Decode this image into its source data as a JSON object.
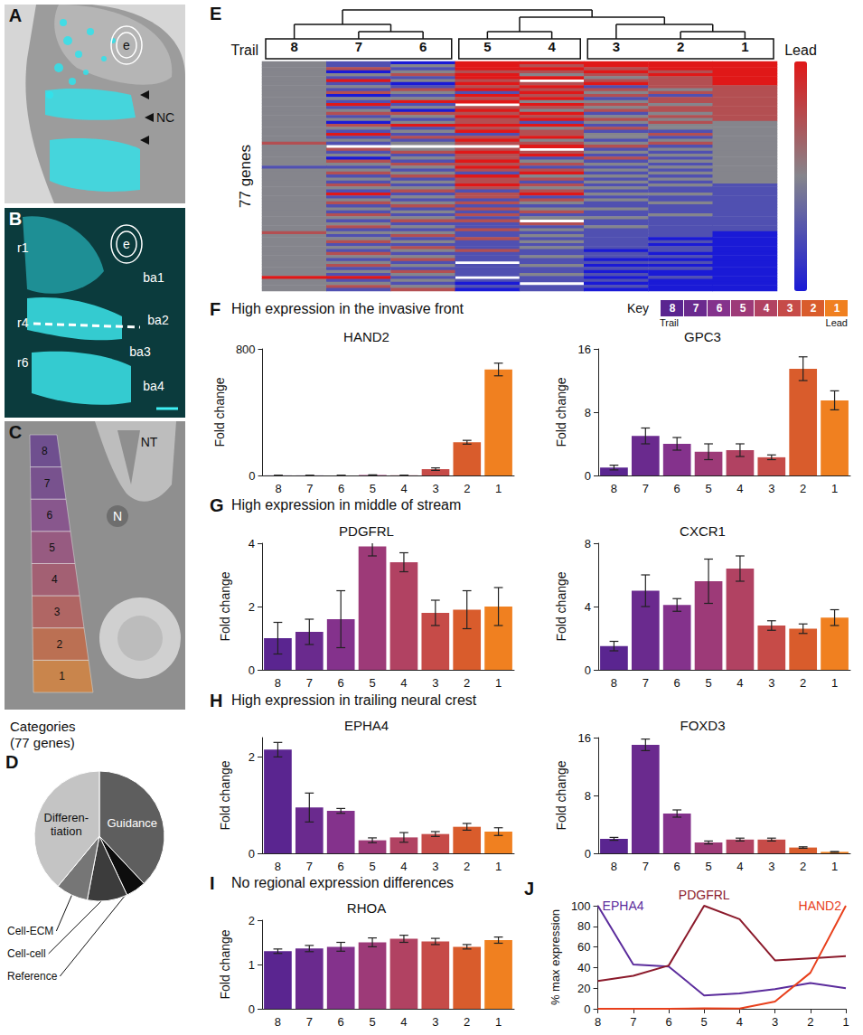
{
  "figure": {
    "images": [
      {
        "panel": "A",
        "labels": [
          "e",
          "NC"
        ]
      },
      {
        "panel": "B",
        "labels": [
          "r1",
          "r4",
          "r6",
          "ba1",
          "ba2",
          "ba3",
          "ba4",
          "e"
        ]
      },
      {
        "panel": "C",
        "labels": [
          "NT",
          "N"
        ],
        "segments": [
          "8",
          "7",
          "6",
          "5",
          "4",
          "3",
          "2",
          "1"
        ]
      }
    ],
    "sections": [
      {
        "panel": "F",
        "title": "High expression in the invasive front"
      },
      {
        "panel": "G",
        "title": "High expression in middle of stream"
      },
      {
        "panel": "H",
        "title": "High expression in trailing neural crest"
      },
      {
        "panel": "I",
        "title": "No regional expression differences"
      }
    ],
    "key": {
      "title": "Key",
      "labels": [
        "8",
        "7",
        "6",
        "5",
        "4",
        "3",
        "2",
        "1"
      ],
      "colors": [
        "#5a2590",
        "#6a2a8e",
        "#84328c",
        "#9d3a78",
        "#b14262",
        "#c64b48",
        "#d95c2c",
        "#f08020"
      ],
      "left": "Trail",
      "right": "Lead"
    }
  },
  "chart_data": [
    {
      "type": "heatmap",
      "panel": "E",
      "ylabel": "77 genes",
      "x_left_label": "Trail",
      "x_right_label": "Lead",
      "categories": [
        "8",
        "7",
        "6",
        "5",
        "4",
        "3",
        "2",
        "1"
      ],
      "dendrogram": [
        [
          "8",
          [
            "7",
            "6"
          ]
        ],
        [
          [
            "5",
            "4"
          ],
          [
            "3",
            [
              "2",
              "1"
            ]
          ]
        ]
      ],
      "clusters": [
        [
          "8",
          "7",
          "6"
        ],
        [
          "5",
          "4"
        ],
        [
          "3",
          "2",
          "1"
        ]
      ],
      "color": [
        "#1a1ad6",
        "#85858c",
        "#e01818"
      ],
      "color_range": [
        -2,
        2
      ],
      "tick_labels": "x",
      "grid": false,
      "cells": [
        [
          0,
          -1,
          -2,
          2,
          2,
          2,
          2,
          2
        ],
        [
          0,
          -1,
          0,
          2,
          1,
          2,
          2,
          2
        ],
        [
          0,
          1,
          -1,
          2,
          2,
          1,
          2,
          2
        ],
        [
          0,
          -2,
          0,
          1,
          1,
          2,
          1,
          2
        ],
        [
          0,
          0,
          1,
          2,
          0,
          1,
          2,
          2
        ],
        [
          0,
          -1,
          -1,
          2,
          2,
          0,
          1,
          2
        ],
        [
          0,
          2,
          0,
          1,
          null,
          1,
          1,
          2
        ],
        [
          0,
          -1,
          -2,
          2,
          1,
          2,
          1,
          2
        ],
        [
          0,
          0,
          -1,
          1,
          2,
          -1,
          1,
          1
        ],
        [
          0,
          -1,
          1,
          2,
          1,
          1,
          0,
          1
        ],
        [
          0,
          1,
          0,
          -1,
          2,
          0,
          1,
          1
        ],
        [
          0,
          -2,
          -1,
          2,
          1,
          1,
          -1,
          1
        ],
        [
          0,
          0,
          0,
          1,
          2,
          -1,
          1,
          1
        ],
        [
          0,
          -1,
          2,
          2,
          0,
          0,
          1,
          1
        ],
        [
          0,
          2,
          -1,
          null,
          2,
          1,
          0,
          1
        ],
        [
          0,
          -1,
          0,
          1,
          1,
          0,
          1,
          1
        ],
        [
          0,
          0,
          -2,
          2,
          0,
          1,
          1,
          1
        ],
        [
          0,
          1,
          1,
          1,
          2,
          -1,
          0,
          1
        ],
        [
          0,
          -1,
          0,
          2,
          1,
          0,
          1,
          1
        ],
        [
          0,
          0,
          -1,
          1,
          2,
          1,
          0,
          1
        ],
        [
          0,
          -2,
          0,
          1,
          -1,
          0,
          1,
          0
        ],
        [
          0,
          1,
          2,
          2,
          2,
          -1,
          0,
          0
        ],
        [
          0,
          0,
          -1,
          1,
          0,
          1,
          0,
          0
        ],
        [
          0,
          -1,
          0,
          2,
          1,
          -1,
          -1,
          0
        ],
        [
          0,
          2,
          -1,
          -1,
          1,
          0,
          1,
          0
        ],
        [
          0,
          -1,
          1,
          1,
          2,
          0,
          -1,
          0
        ],
        [
          0,
          0,
          -1,
          2,
          0,
          -1,
          0,
          0
        ],
        [
          1,
          -1,
          0,
          1,
          1,
          0,
          1,
          0
        ],
        [
          0,
          null,
          null,
          null,
          2,
          1,
          -1,
          0
        ],
        [
          0,
          1,
          0,
          1,
          null,
          -1,
          0,
          0
        ],
        [
          0,
          -1,
          1,
          2,
          1,
          0,
          -1,
          0
        ],
        [
          0,
          0,
          -1,
          1,
          2,
          -1,
          0,
          0
        ],
        [
          0,
          -2,
          0,
          1,
          -1,
          1,
          -1,
          0
        ],
        [
          0,
          1,
          -1,
          2,
          0,
          -1,
          0,
          0
        ],
        [
          0,
          0,
          1,
          1,
          1,
          0,
          -1,
          0
        ],
        [
          -1,
          -1,
          0,
          2,
          -1,
          -1,
          0,
          0
        ],
        [
          0,
          0,
          -1,
          1,
          1,
          0,
          -1,
          0
        ],
        [
          0,
          1,
          0,
          -1,
          2,
          -1,
          0,
          0
        ],
        [
          0,
          -1,
          1,
          2,
          0,
          0,
          -1,
          0
        ],
        [
          0,
          0,
          -1,
          1,
          1,
          -1,
          0,
          0
        ],
        [
          0,
          -1,
          0,
          1,
          -1,
          0,
          -1,
          0
        ],
        [
          0,
          1,
          -1,
          2,
          1,
          -1,
          0,
          -1
        ],
        [
          0,
          0,
          0,
          1,
          0,
          0,
          -1,
          -1
        ],
        [
          0,
          -1,
          1,
          -1,
          1,
          -1,
          -1,
          -1
        ],
        [
          0,
          2,
          -1,
          1,
          2,
          0,
          0,
          -1
        ],
        [
          0,
          -1,
          0,
          1,
          -1,
          -1,
          -1,
          -1
        ],
        [
          0,
          0,
          -1,
          -1,
          1,
          0,
          -1,
          -1
        ],
        [
          0,
          1,
          0,
          1,
          0,
          -1,
          0,
          -1
        ],
        [
          0,
          -1,
          1,
          -1,
          -1,
          -1,
          -1,
          -1
        ],
        [
          0,
          0,
          -1,
          1,
          0,
          0,
          -1,
          -1
        ],
        [
          0,
          -1,
          0,
          -1,
          1,
          -1,
          -1,
          -1
        ],
        [
          0,
          1,
          -1,
          1,
          -1,
          -1,
          0,
          -1
        ],
        [
          0,
          0,
          0,
          -1,
          0,
          0,
          -1,
          -1
        ],
        [
          0,
          -1,
          1,
          1,
          null,
          -1,
          -1,
          -1
        ],
        [
          0,
          0,
          -1,
          -1,
          1,
          -1,
          -1,
          -1
        ],
        [
          0,
          1,
          0,
          -1,
          -1,
          0,
          -1,
          -1
        ],
        [
          0,
          -1,
          -1,
          1,
          0,
          -1,
          -1,
          -1
        ],
        [
          1,
          0,
          0,
          -1,
          -1,
          -1,
          -1,
          -2
        ],
        [
          0,
          -1,
          1,
          -1,
          0,
          -1,
          -1,
          -2
        ],
        [
          0,
          0,
          -1,
          1,
          -1,
          -1,
          -2,
          -2
        ],
        [
          0,
          1,
          0,
          -1,
          0,
          -1,
          -1,
          -2
        ],
        [
          0,
          -1,
          -1,
          -1,
          -1,
          -1,
          -2,
          -2
        ],
        [
          0,
          0,
          1,
          -1,
          0,
          -1,
          -1,
          -2
        ],
        [
          0,
          -1,
          0,
          1,
          -1,
          -2,
          -1,
          -2
        ],
        [
          0,
          1,
          -1,
          -1,
          -1,
          -1,
          -2,
          -2
        ],
        [
          0,
          0,
          0,
          -1,
          0,
          -1,
          -1,
          -2
        ],
        [
          0,
          -1,
          1,
          -1,
          -1,
          -2,
          -2,
          -2
        ],
        [
          0,
          0,
          -1,
          null,
          -1,
          -1,
          -1,
          -2
        ],
        [
          0,
          1,
          0,
          -1,
          0,
          -2,
          -2,
          -2
        ],
        [
          0,
          -1,
          -1,
          -1,
          -1,
          -1,
          -1,
          -2
        ],
        [
          0,
          0,
          1,
          -1,
          -1,
          -2,
          -2,
          -2
        ],
        [
          0,
          -1,
          0,
          -1,
          0,
          -1,
          -2,
          -2
        ],
        [
          2,
          2,
          -1,
          null,
          -1,
          -2,
          -1,
          -2
        ],
        [
          0,
          -1,
          0,
          -1,
          -1,
          -1,
          -2,
          -2
        ],
        [
          0,
          0,
          -1,
          -2,
          null,
          -2,
          -2,
          -2
        ],
        [
          0,
          1,
          0,
          -1,
          -1,
          -1,
          -2,
          -2
        ],
        [
          0,
          -1,
          1,
          -2,
          -1,
          -2,
          -2,
          -2
        ]
      ]
    },
    {
      "type": "pie",
      "panel": "D",
      "title": "Categories (77 genes)",
      "categories": [
        "Guidance",
        "Reference",
        "Cell-cell",
        "Cell-ECM",
        "Differen-tiation"
      ],
      "values": [
        38,
        5,
        10,
        8,
        39
      ],
      "colors": [
        "#5e5e5e",
        "#0d0d0d",
        "#3c3c3c",
        "#767676",
        "#c4c4c4"
      ]
    },
    {
      "type": "bar",
      "panel": "F",
      "title": "HAND2",
      "ylabel": "Fold change",
      "categories": [
        "8",
        "7",
        "6",
        "5",
        "4",
        "3",
        "2",
        "1"
      ],
      "values": [
        0.5,
        0.5,
        0.5,
        3,
        1,
        40,
        210,
        670
      ],
      "errors": [
        0,
        0,
        0,
        1,
        0,
        8,
        12,
        40
      ],
      "colors": [
        "#5a2590",
        "#6a2a8e",
        "#84328c",
        "#9d3a78",
        "#b14262",
        "#c64b48",
        "#d95c2c",
        "#f08020"
      ],
      "ylim": [
        0,
        800
      ],
      "yticks": [
        0,
        800
      ],
      "grid": false
    },
    {
      "type": "bar",
      "panel": "F",
      "title": "GPC3",
      "ylabel": "Fold change",
      "categories": [
        "8",
        "7",
        "6",
        "5",
        "4",
        "3",
        "2",
        "1"
      ],
      "values": [
        1,
        5,
        4,
        3,
        3.2,
        2.3,
        13.5,
        9.5
      ],
      "errors": [
        0.3,
        1,
        0.8,
        1,
        0.8,
        0.3,
        1.5,
        1.2
      ],
      "colors": [
        "#5a2590",
        "#6a2a8e",
        "#84328c",
        "#9d3a78",
        "#b14262",
        "#c64b48",
        "#d95c2c",
        "#f08020"
      ],
      "ylim": [
        0,
        16
      ],
      "yticks": [
        0,
        8,
        16
      ],
      "grid": false
    },
    {
      "type": "bar",
      "panel": "G",
      "title": "PDGFRL",
      "ylabel": "Fold change",
      "categories": [
        "8",
        "7",
        "6",
        "5",
        "4",
        "3",
        "2",
        "1"
      ],
      "values": [
        1,
        1.2,
        1.6,
        3.9,
        3.4,
        1.8,
        1.9,
        2
      ],
      "errors": [
        0.5,
        0.4,
        0.9,
        0.3,
        0.3,
        0.4,
        0.6,
        0.6
      ],
      "colors": [
        "#5a2590",
        "#6a2a8e",
        "#84328c",
        "#9d3a78",
        "#b14262",
        "#c64b48",
        "#d95c2c",
        "#f08020"
      ],
      "ylim": [
        0,
        4
      ],
      "yticks": [
        0,
        2,
        4
      ],
      "grid": false
    },
    {
      "type": "bar",
      "panel": "G",
      "title": "CXCR1",
      "ylabel": "Fold change",
      "categories": [
        "8",
        "7",
        "6",
        "5",
        "4",
        "3",
        "2",
        "1"
      ],
      "values": [
        1.5,
        5,
        4.1,
        5.6,
        6.4,
        2.8,
        2.6,
        3.3
      ],
      "errors": [
        0.3,
        1,
        0.4,
        1.4,
        0.8,
        0.3,
        0.3,
        0.5
      ],
      "colors": [
        "#5a2590",
        "#6a2a8e",
        "#84328c",
        "#9d3a78",
        "#b14262",
        "#c64b48",
        "#d95c2c",
        "#f08020"
      ],
      "ylim": [
        0,
        8
      ],
      "yticks": [
        0,
        4,
        8
      ],
      "grid": false
    },
    {
      "type": "bar",
      "panel": "H",
      "title": "EPHA4",
      "ylabel": "Fold change",
      "categories": [
        "8",
        "7",
        "6",
        "5",
        "4",
        "3",
        "2",
        "1"
      ],
      "values": [
        2.15,
        0.95,
        0.88,
        0.27,
        0.33,
        0.4,
        0.55,
        0.45
      ],
      "errors": [
        0.15,
        0.3,
        0.05,
        0.05,
        0.1,
        0.05,
        0.07,
        0.08
      ],
      "colors": [
        "#5a2590",
        "#6a2a8e",
        "#84328c",
        "#9d3a78",
        "#b14262",
        "#c64b48",
        "#d95c2c",
        "#f08020"
      ],
      "ylim": [
        0,
        2.4
      ],
      "yticks": [
        0,
        2
      ],
      "grid": false
    },
    {
      "type": "bar",
      "panel": "H",
      "title": "FOXD3",
      "ylabel": "Fold change",
      "categories": [
        "8",
        "7",
        "6",
        "5",
        "4",
        "3",
        "2",
        "1"
      ],
      "values": [
        2,
        15,
        5.5,
        1.5,
        1.9,
        1.9,
        0.8,
        0.2
      ],
      "errors": [
        0.2,
        0.8,
        0.5,
        0.2,
        0.2,
        0.2,
        0.1,
        0.05
      ],
      "colors": [
        "#5a2590",
        "#6a2a8e",
        "#84328c",
        "#9d3a78",
        "#b14262",
        "#c64b48",
        "#d95c2c",
        "#f08020"
      ],
      "ylim": [
        0,
        16
      ],
      "yticks": [
        0,
        8,
        16
      ],
      "grid": false
    },
    {
      "type": "bar",
      "panel": "I",
      "title": "RHOA",
      "ylabel": "Fold change",
      "categories": [
        "8",
        "7",
        "6",
        "5",
        "4",
        "3",
        "2",
        "1"
      ],
      "values": [
        1.3,
        1.36,
        1.4,
        1.5,
        1.58,
        1.52,
        1.4,
        1.55
      ],
      "errors": [
        0.05,
        0.07,
        0.1,
        0.1,
        0.08,
        0.07,
        0.05,
        0.07
      ],
      "colors": [
        "#5a2590",
        "#6a2a8e",
        "#84328c",
        "#9d3a78",
        "#b14262",
        "#c64b48",
        "#d95c2c",
        "#f08020"
      ],
      "ylim": [
        0,
        2
      ],
      "yticks": [
        0,
        1,
        2
      ],
      "grid": false
    },
    {
      "type": "line",
      "panel": "J",
      "ylabel": "% max expression",
      "categories": [
        "8",
        "7",
        "6",
        "5",
        "4",
        "3",
        "2",
        "1"
      ],
      "series": [
        {
          "name": "EPHA4",
          "color": "#5b2c9c",
          "values": [
            100,
            43,
            41,
            13,
            15,
            19,
            25,
            20
          ]
        },
        {
          "name": "PDGFRL",
          "color": "#8b1a2b",
          "values": [
            27,
            32,
            42,
            100,
            87,
            47,
            49,
            51
          ]
        },
        {
          "name": "HAND2",
          "color": "#e8401c",
          "values": [
            0,
            0,
            0,
            0.5,
            0.2,
            7,
            35,
            100
          ]
        }
      ],
      "ylim": [
        0,
        100
      ],
      "yticks": [
        0,
        20,
        40,
        60,
        80,
        100
      ],
      "grid": false,
      "marker": "none"
    }
  ]
}
